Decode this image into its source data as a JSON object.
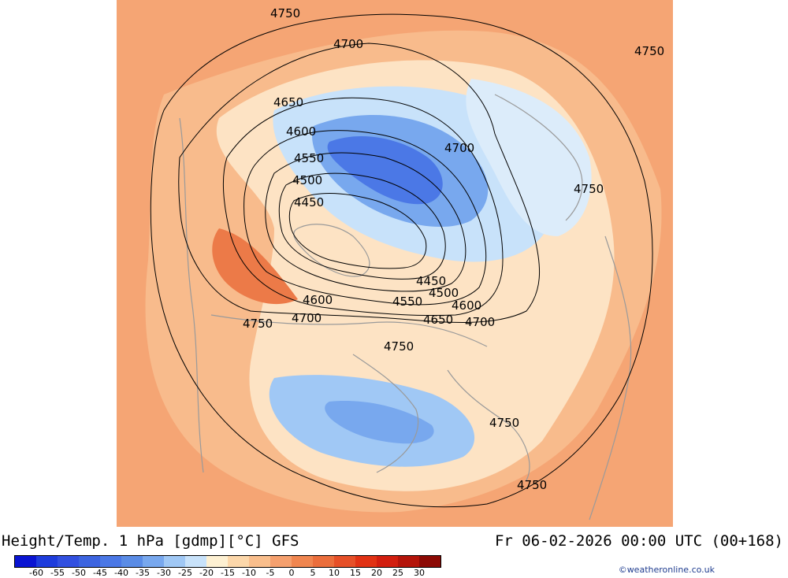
{
  "map": {
    "contour_labels": [
      "4750",
      "4700",
      "4750",
      "4650",
      "4600",
      "4700",
      "4550",
      "4500",
      "4750",
      "4450",
      "4450",
      "4500",
      "4600",
      "4550",
      "4600",
      "4700",
      "4650",
      "4700",
      "4750",
      "4750",
      "4750",
      "4750"
    ]
  },
  "footer": {
    "title_left": "Height/Temp. 1 hPa [gdmp][°C] GFS",
    "title_right": "Fr 06-02-2026 00:00 UTC (00+168)",
    "credit": "©weatheronline.co.uk"
  },
  "colorbar": {
    "colors": [
      "#0a14d2",
      "#1e3cdc",
      "#3250e0",
      "#3c64e0",
      "#4b78e6",
      "#5a8ce6",
      "#78a8ee",
      "#a0c8f5",
      "#c8e2fa",
      "#fdf0d2",
      "#fcd7aa",
      "#f9be8c",
      "#f5a06e",
      "#f08650",
      "#eb6e3c",
      "#e65028",
      "#e13214",
      "#d21e0f",
      "#b4140a",
      "#8c0a05"
    ],
    "labels": [
      "-60",
      "-55",
      "-50",
      "-45",
      "-40",
      "-35",
      "-30",
      "-25",
      "-20",
      "-15",
      "-10",
      "-5",
      "0",
      "5",
      "10",
      "15",
      "20",
      "25",
      "30"
    ]
  }
}
